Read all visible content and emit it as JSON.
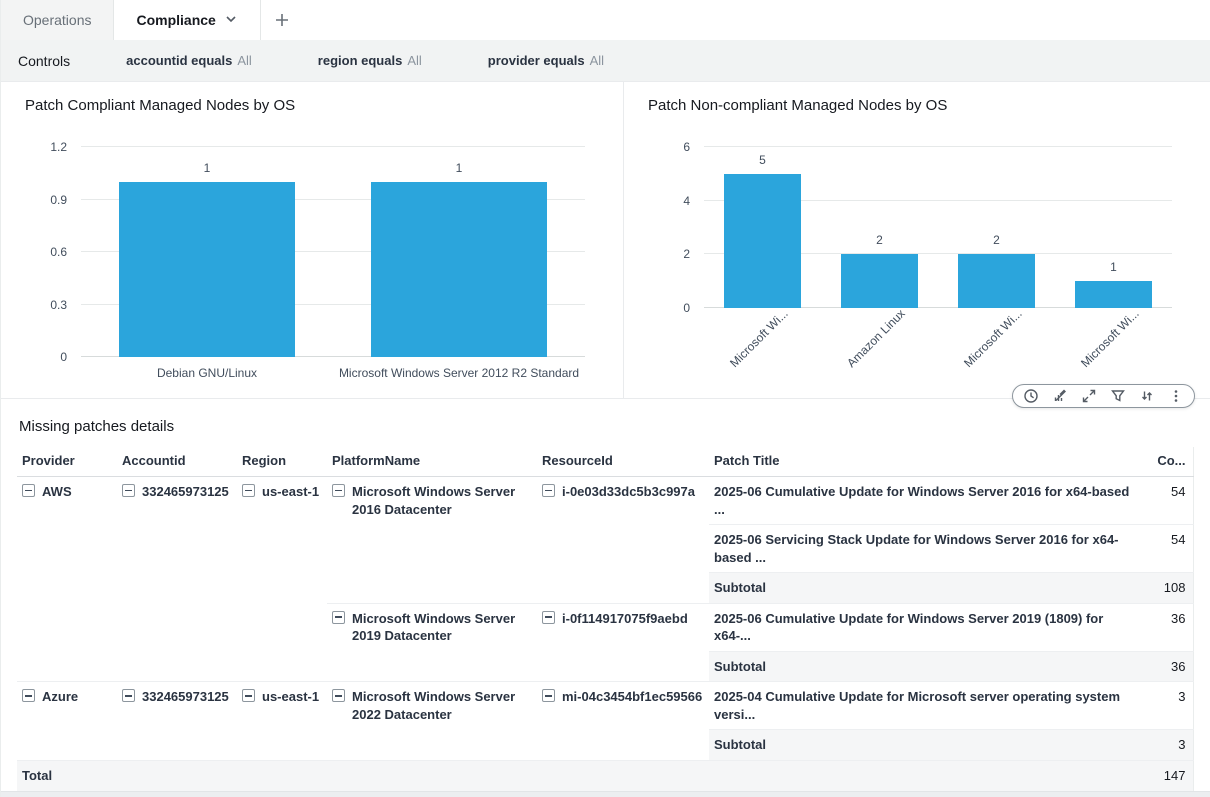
{
  "tab_bar": {
    "tabs": [
      {
        "label": "Operations",
        "active": false
      },
      {
        "label": "Compliance",
        "active": true,
        "has_chevron": true
      }
    ],
    "add_tab_icon": "plus"
  },
  "controls_bar": {
    "label": "Controls",
    "filters": [
      {
        "field": "accountid equals",
        "value": "All"
      },
      {
        "field": "region equals",
        "value": "All"
      },
      {
        "field": "provider equals",
        "value": "All"
      }
    ]
  },
  "chart_data": [
    {
      "type": "bar",
      "title": "Patch Compliant Managed Nodes by OS",
      "categories": [
        "Debian GNU/Linux",
        "Microsoft Windows Server 2012 R2 Standard"
      ],
      "values": [
        1,
        1
      ],
      "data_labels": [
        "1",
        "1"
      ],
      "ylim": [
        0,
        1.2
      ],
      "yticks": [
        "1.2",
        "0.9",
        "0.6",
        "0.3",
        "0"
      ],
      "grid": true,
      "legend": "none",
      "bar_color": "#2BA5DC",
      "category_label_rotation": 0
    },
    {
      "type": "bar",
      "title": "Patch Non-compliant Managed Nodes by OS",
      "categories": [
        "Microsoft Wi...",
        "Amazon Linux",
        "Microsoft Wi...",
        "Microsoft Wi..."
      ],
      "values": [
        5,
        2,
        2,
        1
      ],
      "data_labels": [
        "5",
        "2",
        "2",
        "1"
      ],
      "ylim": [
        0,
        6
      ],
      "yticks": [
        "6",
        "4",
        "2",
        "0"
      ],
      "grid": true,
      "legend": "none",
      "bar_color": "#2BA5DC",
      "category_label_rotation": -45
    }
  ],
  "visual_menu": {
    "icons": [
      "clock-icon",
      "chart-edit-icon",
      "maximize-icon",
      "filter-icon",
      "export-icon",
      "kebab-menu-icon"
    ]
  },
  "table": {
    "title": "Missing patches details",
    "columns": [
      "Provider",
      "Accountid",
      "Region",
      "PlatformName",
      "ResourceId",
      "Patch Title",
      "Co..."
    ],
    "rows": [
      {
        "cells": [
          {
            "col": "provider",
            "text": "AWS",
            "rowspan": 5,
            "collapse": true
          },
          {
            "col": "accountid",
            "text": "332465973125",
            "rowspan": 5,
            "collapse": true
          },
          {
            "col": "region",
            "text": "us-east-1",
            "rowspan": 5,
            "collapse": true
          },
          {
            "col": "platform",
            "text": "Microsoft Windows Server 2016 Datacenter",
            "rowspan": 3,
            "collapse": true
          },
          {
            "col": "resource",
            "text": "i-0e03d33dc5b3c997a",
            "rowspan": 3,
            "collapse": true
          },
          {
            "col": "patch",
            "text": "2025-06 Cumulative Update for Windows Server 2016 for x64-based ..."
          },
          {
            "col": "count",
            "text": "54"
          }
        ]
      },
      {
        "cells": [
          {
            "col": "patch",
            "text": "2025-06 Servicing Stack Update for Windows Server 2016 for x64-based ..."
          },
          {
            "col": "count",
            "text": "54"
          }
        ]
      },
      {
        "subtotal": true,
        "cells": [
          {
            "col": "patch",
            "text": "Subtotal"
          },
          {
            "col": "count",
            "text": "108"
          }
        ]
      },
      {
        "cells": [
          {
            "col": "platform",
            "text": "Microsoft Windows Server 2019 Datacenter",
            "rowspan": 2,
            "collapse": true
          },
          {
            "col": "resource",
            "text": "i-0f114917075f9aebd",
            "rowspan": 2,
            "collapse": true
          },
          {
            "col": "patch",
            "text": "2025-06 Cumulative Update for Windows Server 2019 (1809) for x64-..."
          },
          {
            "col": "count",
            "text": "36"
          }
        ]
      },
      {
        "subtotal": true,
        "cells": [
          {
            "col": "patch",
            "text": "Subtotal"
          },
          {
            "col": "count",
            "text": "36"
          }
        ]
      },
      {
        "cells": [
          {
            "col": "provider",
            "text": "Azure",
            "rowspan": 2,
            "collapse": true
          },
          {
            "col": "accountid",
            "text": "332465973125",
            "rowspan": 2,
            "collapse": true
          },
          {
            "col": "region",
            "text": "us-east-1",
            "rowspan": 2,
            "collapse": true
          },
          {
            "col": "platform",
            "text": "Microsoft Windows Server 2022 Datacenter",
            "rowspan": 2,
            "collapse": true
          },
          {
            "col": "resource",
            "text": "mi-04c3454bf1ec59566",
            "rowspan": 2,
            "collapse": true
          },
          {
            "col": "patch",
            "text": "2025-04 Cumulative Update for Microsoft server operating system versi..."
          },
          {
            "col": "count",
            "text": "3"
          }
        ]
      },
      {
        "subtotal": true,
        "cells": [
          {
            "col": "patch",
            "text": "Subtotal"
          },
          {
            "col": "count",
            "text": "3"
          }
        ]
      }
    ],
    "total_row": {
      "label": "Total",
      "value": "147"
    }
  },
  "colors": {
    "bar": "#2BA5DC",
    "text_dark": "#16191f",
    "text_gray": "#687078",
    "controls_bg": "#f1f3f3",
    "subtotal_bg": "#f5f6f7",
    "border": "#e9ebed"
  }
}
